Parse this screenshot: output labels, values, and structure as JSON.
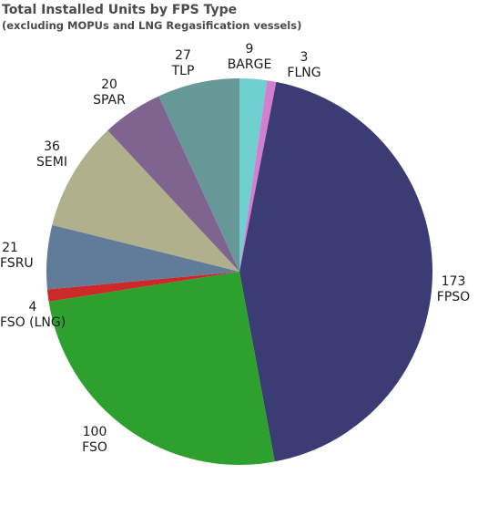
{
  "chart_data": {
    "type": "pie",
    "title": "Total Installed Units by FPS Type",
    "subtitle": "(excluding MOPUs and LNG Regasification vessels)",
    "slices": [
      {
        "label": "BARGE",
        "value": 9,
        "color": "#70d0d0"
      },
      {
        "label": "FLNG",
        "value": 3,
        "color": "#d37fd0"
      },
      {
        "label": "FPSO",
        "value": 173,
        "color": "#3c3c74"
      },
      {
        "label": "FSO",
        "value": 100,
        "color": "#2ea02e"
      },
      {
        "label": "FSO (LNG)",
        "value": 4,
        "color": "#cc2a2a"
      },
      {
        "label": "FSRU",
        "value": 21,
        "color": "#607c98"
      },
      {
        "label": "SEMI",
        "value": 36,
        "color": "#b0b08c"
      },
      {
        "label": "SPAR",
        "value": 20,
        "color": "#806490"
      },
      {
        "label": "TLP",
        "value": 27,
        "color": "#669898"
      }
    ],
    "start": "12 o'clock, clockwise"
  }
}
